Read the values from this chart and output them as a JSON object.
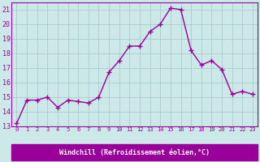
{
  "x": [
    0,
    1,
    2,
    3,
    4,
    5,
    6,
    7,
    8,
    9,
    10,
    11,
    12,
    13,
    14,
    15,
    16,
    17,
    18,
    19,
    20,
    21,
    22,
    23
  ],
  "y": [
    13.2,
    14.8,
    14.8,
    15.0,
    14.3,
    14.8,
    14.7,
    14.6,
    15.0,
    16.7,
    17.5,
    18.5,
    18.5,
    19.5,
    20.0,
    21.1,
    21.0,
    18.2,
    17.2,
    17.5,
    16.9,
    15.2,
    15.4,
    15.2
  ],
  "line_color": "#990099",
  "marker": "+",
  "bg_color": "#cce8e8",
  "grid_color": "#aacccc",
  "xlim": [
    -0.5,
    23.5
  ],
  "ylim": [
    13,
    21.5
  ],
  "yticks": [
    13,
    14,
    15,
    16,
    17,
    18,
    19,
    20,
    21
  ],
  "xticks": [
    0,
    1,
    2,
    3,
    4,
    5,
    6,
    7,
    8,
    9,
    10,
    11,
    12,
    13,
    14,
    15,
    16,
    17,
    18,
    19,
    20,
    21,
    22,
    23
  ],
  "xlabel": "Windchill (Refroidissement éolien,°C)",
  "tick_color": "#990099",
  "line_width": 1.0,
  "marker_size": 4
}
